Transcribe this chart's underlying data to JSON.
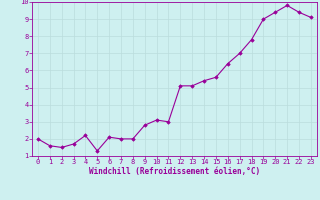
{
  "x": [
    0,
    1,
    2,
    3,
    4,
    5,
    6,
    7,
    8,
    9,
    10,
    11,
    12,
    13,
    14,
    15,
    16,
    17,
    18,
    19,
    20,
    21,
    22,
    23
  ],
  "y": [
    2.0,
    1.6,
    1.5,
    1.7,
    2.2,
    1.3,
    2.1,
    2.0,
    2.0,
    2.8,
    3.1,
    3.0,
    5.1,
    5.1,
    5.4,
    5.6,
    6.4,
    7.0,
    7.8,
    9.0,
    9.4,
    9.8,
    9.4,
    9.1
  ],
  "line_color": "#990099",
  "marker": "D",
  "marker_size": 1.8,
  "line_width": 0.8,
  "xlabel": "Windchill (Refroidissement éolien,°C)",
  "xlim": [
    -0.5,
    23.5
  ],
  "ylim": [
    1.0,
    10.0
  ],
  "yticks": [
    1,
    2,
    3,
    4,
    5,
    6,
    7,
    8,
    9,
    10
  ],
  "xticks": [
    0,
    1,
    2,
    3,
    4,
    5,
    6,
    7,
    8,
    9,
    10,
    11,
    12,
    13,
    14,
    15,
    16,
    17,
    18,
    19,
    20,
    21,
    22,
    23
  ],
  "bg_color": "#cef0f0",
  "grid_color": "#bbdddd",
  "axis_color": "#990099",
  "tick_label_color": "#990099",
  "xlabel_color": "#990099",
  "tick_fontsize": 5,
  "xlabel_fontsize": 5.5
}
